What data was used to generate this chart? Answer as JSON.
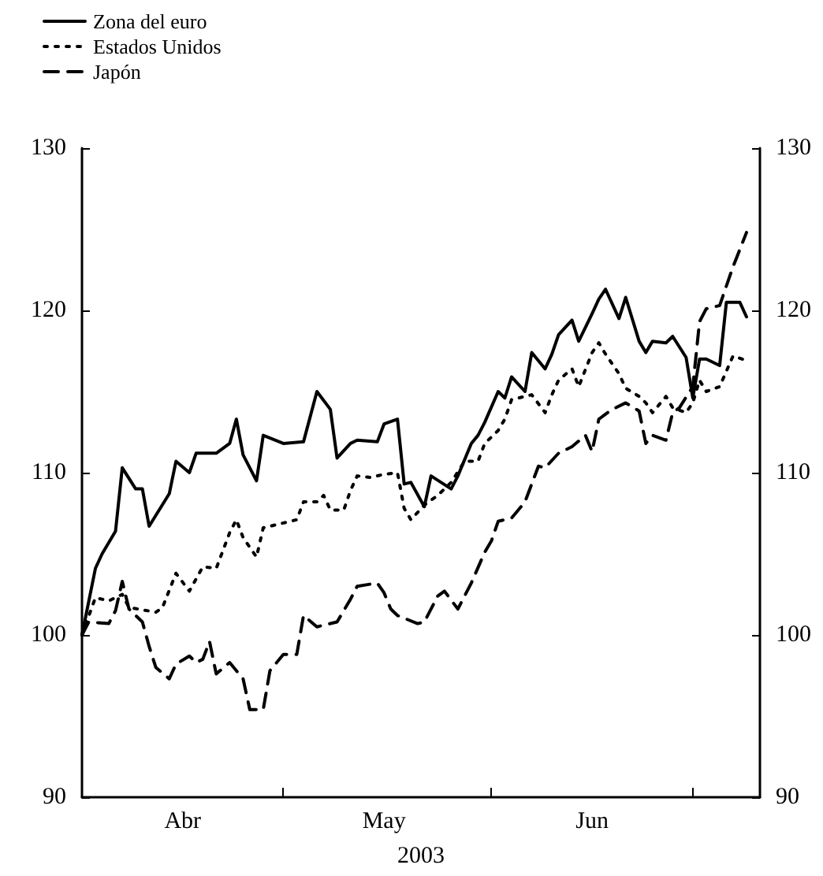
{
  "chart_data": {
    "type": "line",
    "xlabel": "2003",
    "legend": "top left",
    "marker": "none",
    "xlim": [
      "2003-04-01",
      "2003-07-11"
    ],
    "xticks": [
      {
        "value": "2003-05-01",
        "label": null
      },
      {
        "value": "2003-06-01",
        "label": null
      },
      {
        "value": "2003-07-01",
        "label": null
      },
      {
        "value": "2003-04-16",
        "label": "Abr"
      },
      {
        "value": "2003-05-16",
        "label": "May"
      },
      {
        "value": "2003-06-16",
        "label": "Jun"
      }
    ],
    "ylim": [
      90,
      130
    ],
    "yticks": [
      90,
      100,
      110,
      120,
      130
    ],
    "y2lim": [
      90,
      130
    ],
    "y2ticks": [
      90,
      100,
      110,
      120,
      130
    ],
    "series": [
      {
        "name": "Zona del euro",
        "color": "#000000",
        "line_style": "solid",
        "x": [
          "2003-04-01",
          "2003-04-03",
          "2003-04-04",
          "2003-04-06",
          "2003-04-07",
          "2003-04-09",
          "2003-04-10",
          "2003-04-11",
          "2003-04-14",
          "2003-04-15",
          "2003-04-17",
          "2003-04-18",
          "2003-04-21",
          "2003-04-23",
          "2003-04-24",
          "2003-04-25",
          "2003-04-27",
          "2003-04-28",
          "2003-05-01",
          "2003-05-04",
          "2003-05-06",
          "2003-05-08",
          "2003-05-09",
          "2003-05-11",
          "2003-05-12",
          "2003-05-15",
          "2003-05-16",
          "2003-05-18",
          "2003-05-19",
          "2003-05-20",
          "2003-05-22",
          "2003-05-23",
          "2003-05-26",
          "2003-05-27",
          "2003-05-29",
          "2003-05-30",
          "2003-05-31",
          "2003-06-02",
          "2003-06-03",
          "2003-06-04",
          "2003-06-06",
          "2003-06-07",
          "2003-06-09",
          "2003-06-10",
          "2003-06-11",
          "2003-06-13",
          "2003-06-14",
          "2003-06-16",
          "2003-06-17",
          "2003-06-18",
          "2003-06-20",
          "2003-06-21",
          "2003-06-23",
          "2003-06-24",
          "2003-06-25",
          "2003-06-27",
          "2003-06-28",
          "2003-06-30",
          "2003-07-01",
          "2003-07-02",
          "2003-07-03",
          "2003-07-05",
          "2003-07-06",
          "2003-07-08",
          "2003-07-09"
        ],
        "values": [
          100,
          104.1,
          105.0,
          106.4,
          110.3,
          109.0,
          109.0,
          106.7,
          108.7,
          110.7,
          110.0,
          111.2,
          111.2,
          111.8,
          113.3,
          111.1,
          109.5,
          112.3,
          111.8,
          111.9,
          115.0,
          113.9,
          110.9,
          111.8,
          112.0,
          111.9,
          113.0,
          113.3,
          109.3,
          109.4,
          107.9,
          109.8,
          109.0,
          109.8,
          111.8,
          112.3,
          113.1,
          115.0,
          114.6,
          115.9,
          115.0,
          117.4,
          116.4,
          117.3,
          118.5,
          119.4,
          118.1,
          119.8,
          120.7,
          121.3,
          119.5,
          120.8,
          118.1,
          117.4,
          118.1,
          118.0,
          118.4,
          117.1,
          114.6,
          117.0,
          117.0,
          116.6,
          120.5,
          120.5,
          119.6
        ]
      },
      {
        "name": "Estados Unidos",
        "color": "#000000",
        "line_style": "dotted",
        "x": [
          "2003-04-01",
          "2003-04-03",
          "2003-04-05",
          "2003-04-07",
          "2003-04-08",
          "2003-04-12",
          "2003-04-13",
          "2003-04-15",
          "2003-04-17",
          "2003-04-19",
          "2003-04-21",
          "2003-04-23",
          "2003-04-24",
          "2003-04-25",
          "2003-04-27",
          "2003-04-28",
          "2003-05-01",
          "2003-05-03",
          "2003-05-04",
          "2003-05-06",
          "2003-05-07",
          "2003-05-08",
          "2003-05-10",
          "2003-05-11",
          "2003-05-12",
          "2003-05-14",
          "2003-05-16",
          "2003-05-18",
          "2003-05-19",
          "2003-05-20",
          "2003-05-22",
          "2003-05-24",
          "2003-05-26",
          "2003-05-28",
          "2003-05-30",
          "2003-05-31",
          "2003-06-02",
          "2003-06-03",
          "2003-06-04",
          "2003-06-07",
          "2003-06-09",
          "2003-06-10",
          "2003-06-11",
          "2003-06-13",
          "2003-06-14",
          "2003-06-16",
          "2003-06-17",
          "2003-06-18",
          "2003-06-20",
          "2003-06-21",
          "2003-06-23",
          "2003-06-24",
          "2003-06-25",
          "2003-06-27",
          "2003-06-28",
          "2003-06-30",
          "2003-07-01",
          "2003-07-02",
          "2003-07-03",
          "2003-07-05",
          "2003-07-07",
          "2003-07-09"
        ],
        "values": [
          100,
          102.3,
          102.1,
          102.5,
          101.7,
          101.4,
          101.7,
          103.8,
          102.7,
          104.2,
          104.1,
          106.3,
          107.1,
          106.0,
          104.8,
          106.6,
          106.9,
          107.1,
          108.2,
          108.2,
          108.6,
          107.7,
          107.7,
          108.9,
          109.8,
          109.7,
          109.9,
          110.0,
          107.8,
          107.1,
          108.0,
          108.6,
          109.4,
          110.7,
          110.7,
          111.8,
          112.6,
          113.3,
          114.5,
          114.8,
          113.7,
          114.8,
          115.7,
          116.4,
          115.3,
          117.4,
          118.0,
          117.3,
          116.1,
          115.2,
          114.7,
          114.3,
          113.7,
          114.7,
          114.0,
          113.7,
          114.3,
          115.7,
          115.0,
          115.3,
          117.2,
          116.9
        ]
      },
      {
        "name": "Japón",
        "color": "#000000",
        "line_style": "dashed",
        "x": [
          "2003-04-01",
          "2003-04-02",
          "2003-04-05",
          "2003-04-06",
          "2003-04-07",
          "2003-04-08",
          "2003-04-10",
          "2003-04-11",
          "2003-04-12",
          "2003-04-14",
          "2003-04-15",
          "2003-04-17",
          "2003-04-18",
          "2003-04-19",
          "2003-04-20",
          "2003-04-21",
          "2003-04-23",
          "2003-04-25",
          "2003-04-26",
          "2003-04-28",
          "2003-04-29",
          "2003-05-01",
          "2003-05-03",
          "2003-05-04",
          "2003-05-06",
          "2003-05-09",
          "2003-05-11",
          "2003-05-12",
          "2003-05-15",
          "2003-05-16",
          "2003-05-17",
          "2003-05-18",
          "2003-05-21",
          "2003-05-22",
          "2003-05-24",
          "2003-05-25",
          "2003-05-27",
          "2003-05-29",
          "2003-05-31",
          "2003-06-01",
          "2003-06-02",
          "2003-06-04",
          "2003-06-06",
          "2003-06-07",
          "2003-06-08",
          "2003-06-09",
          "2003-06-11",
          "2003-06-13",
          "2003-06-15",
          "2003-06-16",
          "2003-06-17",
          "2003-06-19",
          "2003-06-21",
          "2003-06-23",
          "2003-06-24",
          "2003-06-25",
          "2003-06-27",
          "2003-06-28",
          "2003-06-29",
          "2003-07-01",
          "2003-07-02",
          "2003-07-03",
          "2003-07-05",
          "2003-07-06",
          "2003-07-07",
          "2003-07-09"
        ],
        "values": [
          100,
          100.8,
          100.7,
          101.5,
          103.3,
          101.6,
          100.8,
          99.3,
          98,
          97.3,
          98.2,
          98.7,
          98.3,
          98.5,
          99.6,
          97.6,
          98.3,
          97.3,
          95.4,
          95.4,
          97.8,
          98.8,
          98.8,
          101.2,
          100.5,
          100.8,
          102.2,
          103.0,
          103.2,
          102.6,
          101.6,
          101.2,
          100.7,
          100.8,
          102.4,
          102.7,
          101.6,
          103.2,
          105.1,
          105.8,
          107.0,
          107.2,
          108.2,
          109.3,
          110.4,
          110.3,
          111.2,
          111.6,
          112.3,
          111.3,
          113.3,
          113.9,
          114.3,
          113.8,
          111.8,
          112.3,
          112.0,
          113.7,
          114.0,
          115.3,
          119.3,
          120.1,
          120.3,
          121.5,
          122.7,
          124.8
        ]
      }
    ]
  }
}
